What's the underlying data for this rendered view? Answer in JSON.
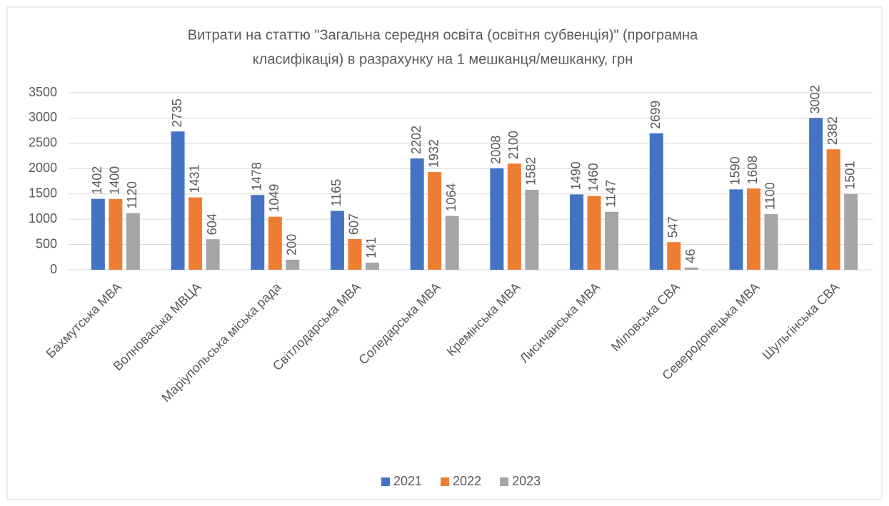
{
  "chart_data": {
    "type": "bar",
    "title": [
      "Витрати на статтю \"Загальна середня освіта (освітня субвенція)\" (програмна",
      "класифікація) в разрахунку на 1 мешканця/мешканку, грн"
    ],
    "categories": [
      "Бахмутська МВА",
      "Волноваська МВЦА",
      "Маріупольська міська рада",
      "Світлодарська МВА",
      "Соледарська МВА",
      "Кремінська МВА",
      "Лисичанська МВА",
      "Міловська СВА",
      "Северодонецька МВА",
      "Шульгінська СВА"
    ],
    "series": [
      {
        "name": "2021",
        "color": "#4472c4",
        "values": [
          1402,
          2735,
          1478,
          1165,
          2202,
          2008,
          1490,
          2699,
          1590,
          3002
        ]
      },
      {
        "name": "2022",
        "color": "#ed7d31",
        "values": [
          1400,
          1431,
          1049,
          607,
          1932,
          2100,
          1460,
          547,
          1608,
          2382
        ]
      },
      {
        "name": "2023",
        "color": "#a5a5a5",
        "values": [
          1120,
          604,
          200,
          141,
          1064,
          1582,
          1147,
          46,
          1100,
          1501
        ]
      }
    ],
    "ylim": [
      0,
      3500
    ],
    "yticks": [
      0,
      500,
      1000,
      1500,
      2000,
      2500,
      3000,
      3500
    ],
    "grid": true,
    "legend": "bottom"
  }
}
